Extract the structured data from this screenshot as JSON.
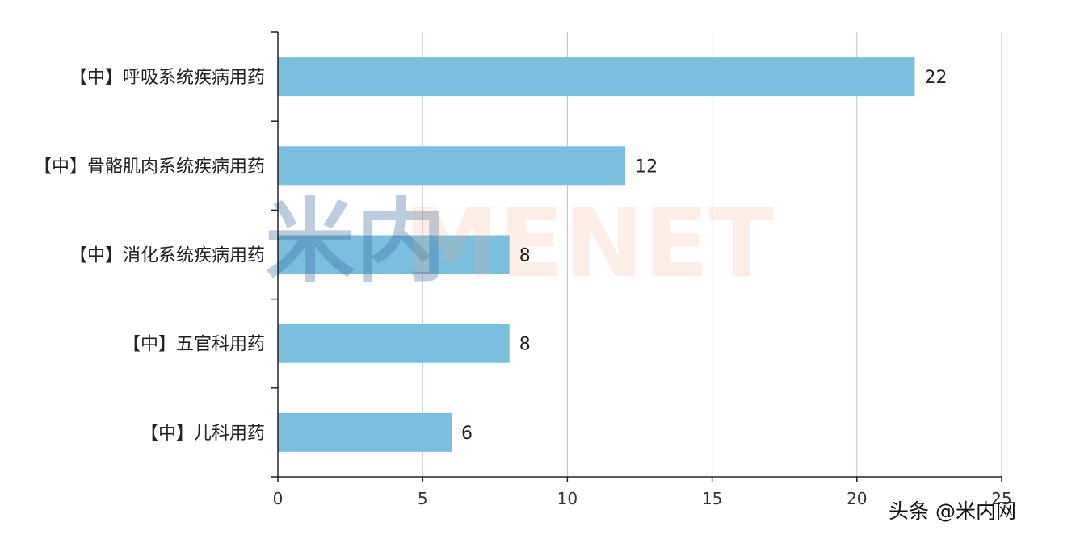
{
  "chart_data": {
    "type": "bar",
    "orientation": "horizontal",
    "categories": [
      "【中】呼吸系统疾病用药",
      "【中】骨骼肌肉系统疾病用药",
      "【中】消化系统疾病用药",
      "【中】五官科用药",
      "【中】儿科用药"
    ],
    "values": [
      22,
      12,
      8,
      8,
      6
    ],
    "xlim": [
      0,
      25
    ],
    "x_ticks": [
      "0",
      "5",
      "10",
      "15",
      "20",
      "25"
    ],
    "grid": "vertical",
    "title": "",
    "xlabel": "",
    "ylabel": "",
    "bar_color": "#7bbfdf",
    "grid_color": "#b9c2d3",
    "axis_color": "#222222"
  },
  "watermark": {
    "mark_text": "米内",
    "text": "MENET",
    "mark_color": "#3f6ea5",
    "text_color": "#f6a883"
  },
  "credit": {
    "text": "头条 @米内网"
  }
}
